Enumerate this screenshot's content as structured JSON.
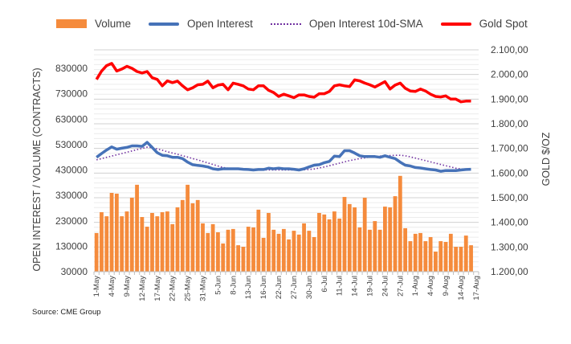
{
  "chart_data": {
    "type": "bar+line",
    "title": "",
    "source": "Source: CME Group",
    "ylabel_left": "OPEN INTEREST / VOLUME (CONTRACTS)",
    "ylabel_right": "GOLD $/OZ",
    "ylim_left": [
      30000,
      903000
    ],
    "yticks_left": [
      "30000",
      "130000",
      "230000",
      "330000",
      "430000",
      "530000",
      "630000",
      "730000",
      "830000"
    ],
    "ylim_right": [
      1200,
      2100
    ],
    "yticks_right": [
      "1.200,00",
      "1.300,00",
      "1.400,00",
      "1.500,00",
      "1.600,00",
      "1.700,00",
      "1.800,00",
      "1.900,00",
      "2.000,00",
      "2.100,00"
    ],
    "slots": 76,
    "x_tick_labels": [
      "1-May",
      "4-May",
      "9-May",
      "12-May",
      "17-May",
      "22-May",
      "25-May",
      "31-May",
      "5-Jun",
      "8-Jun",
      "13-Jun",
      "16-Jun",
      "22-Jun",
      "27-Jun",
      "30-Jun",
      "6-Jul",
      "11-Jul",
      "14-Jul",
      "19-Jul",
      "24-Jul",
      "27-Jul",
      "1-Aug",
      "4-Aug",
      "9-Aug",
      "14-Aug",
      "17-Aug"
    ],
    "x_tick_every": 3,
    "legend": [
      "Volume",
      "Open Interest",
      "Open Interest 10d-SMA",
      "Gold Spot"
    ],
    "legend_position": "top",
    "colors": {
      "volume": "#f58b3c",
      "open_interest": "#4672b8",
      "sma": "#7030a0",
      "gold": "#ff0000"
    },
    "series": [
      {
        "name": "Volume",
        "type": "bar",
        "axis": "left",
        "values": [
          182000,
          264000,
          248000,
          340000,
          337000,
          248000,
          267000,
          321000,
          372000,
          245000,
          207000,
          261000,
          248000,
          264000,
          267000,
          217000,
          283000,
          312000,
          372000,
          299000,
          312000,
          220000,
          182000,
          217000,
          185000,
          141000,
          195000,
          198000,
          134000,
          128000,
          207000,
          204000,
          274000,
          163000,
          261000,
          195000,
          179000,
          198000,
          157000,
          191000,
          176000,
          220000,
          191000,
          166000,
          261000,
          255000,
          236000,
          267000,
          239000,
          324000,
          296000,
          283000,
          204000,
          321000,
          195000,
          229000,
          195000,
          286000,
          283000,
          327000,
          407000,
          201000,
          150000,
          179000,
          182000,
          150000,
          166000,
          109000,
          150000,
          147000,
          179000,
          128000,
          128000,
          172000,
          134000
        ]
      },
      {
        "name": "Open Interest",
        "type": "line",
        "axis": "left",
        "values": [
          480000,
          495000,
          509000,
          521000,
          512000,
          516000,
          519000,
          525000,
          525000,
          523000,
          539000,
          519000,
          498000,
          488000,
          486000,
          480000,
          480000,
          475000,
          461000,
          451000,
          448000,
          446000,
          442000,
          435000,
          432000,
          435000,
          435000,
          435000,
          435000,
          433000,
          432000,
          430000,
          432000,
          432000,
          437000,
          435000,
          437000,
          435000,
          435000,
          433000,
          430000,
          435000,
          442000,
          449000,
          451000,
          459000,
          464000,
          485000,
          483000,
          506000,
          506000,
          497000,
          486000,
          483000,
          483000,
          483000,
          480000,
          486000,
          480000,
          475000,
          461000,
          449000,
          446000,
          440000,
          438000,
          435000,
          432000,
          430000,
          425000,
          428000,
          428000,
          428000,
          430000,
          432000,
          433000
        ]
      },
      {
        "name": "Open Interest 10d-SMA",
        "type": "line",
        "axis": "left",
        "values": [
          470000,
          475000,
          480000,
          485000,
          490000,
          495000,
          500000,
          505000,
          510000,
          515000,
          520000,
          518000,
          513000,
          508000,
          502000,
          497000,
          492000,
          486000,
          481000,
          475000,
          470000,
          464000,
          458000,
          452000,
          446000,
          440000,
          437000,
          435000,
          433000,
          432000,
          431000,
          430000,
          430000,
          430000,
          430000,
          430000,
          430000,
          430000,
          430000,
          430000,
          430000,
          431000,
          432000,
          434000,
          438000,
          442000,
          447000,
          452000,
          457000,
          462000,
          467000,
          471000,
          475000,
          478000,
          481000,
          483000,
          485000,
          486000,
          487000,
          488000,
          488000,
          486000,
          482000,
          477000,
          472000,
          467000,
          462000,
          457000,
          452000,
          447000,
          442000,
          437000,
          434000,
          432000,
          432000
        ]
      },
      {
        "name": "Gold Spot",
        "type": "line",
        "axis": "right",
        "values": [
          1980,
          2014,
          2036,
          2045,
          2014,
          2022,
          2033,
          2025,
          2012,
          2006,
          2012,
          1987,
          1980,
          1954,
          1974,
          1967,
          1973,
          1954,
          1938,
          1946,
          1958,
          1960,
          1973,
          1946,
          1957,
          1960,
          1938,
          1965,
          1960,
          1954,
          1941,
          1938,
          1954,
          1954,
          1936,
          1927,
          1911,
          1920,
          1913,
          1906,
          1917,
          1917,
          1911,
          1908,
          1922,
          1922,
          1931,
          1954,
          1958,
          1954,
          1951,
          1978,
          1974,
          1965,
          1958,
          1949,
          1960,
          1971,
          1941,
          1957,
          1965,
          1944,
          1933,
          1931,
          1941,
          1933,
          1920,
          1911,
          1909,
          1913,
          1900,
          1900,
          1889,
          1892,
          1892
        ]
      }
    ]
  }
}
